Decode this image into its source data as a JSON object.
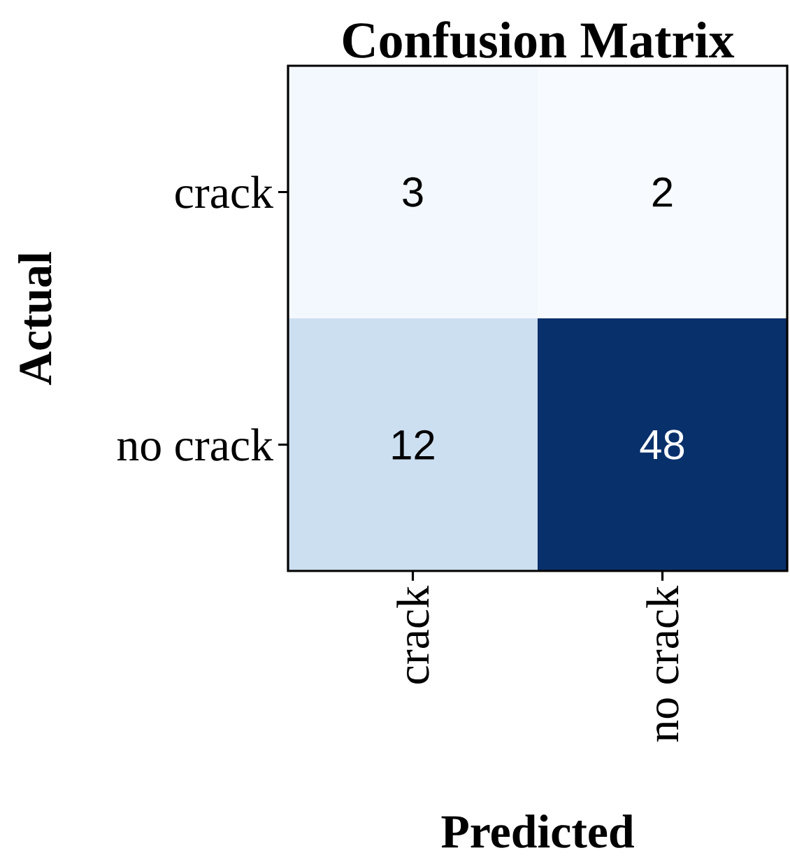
{
  "chart_data": {
    "type": "heatmap",
    "title": "Confusion Matrix",
    "xlabel": "Predicted",
    "ylabel": "Actual",
    "categories": [
      "crack",
      "no crack"
    ],
    "y_categories": [
      "crack",
      "no crack"
    ],
    "cells": [
      [
        3,
        2
      ],
      [
        12,
        48
      ]
    ],
    "data_labels": true
  }
}
